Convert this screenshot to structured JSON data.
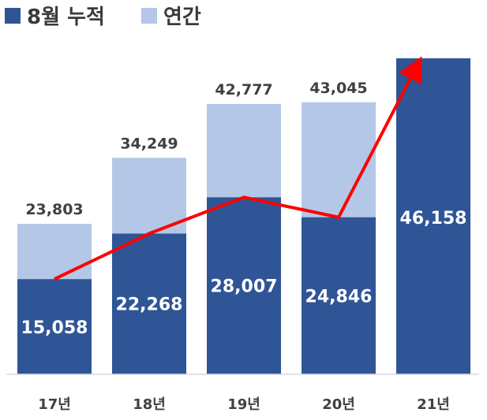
{
  "chart_data": {
    "type": "bar",
    "stacked_overlay": true,
    "categories": [
      "17년",
      "18년",
      "19년",
      "20년",
      "21년"
    ],
    "series": [
      {
        "name": "8월 누적",
        "values": [
          15058,
          22268,
          28007,
          24846,
          46158
        ],
        "labels": [
          "15,058",
          "22,268",
          "28,007",
          "24,846",
          "46,158"
        ],
        "color": "#2f5597"
      },
      {
        "name": "연간",
        "values": [
          23803,
          34249,
          42777,
          43045,
          null
        ],
        "labels": [
          "23,803",
          "34,249",
          "42,777",
          "43,045",
          ""
        ],
        "color": "#b4c7e7"
      }
    ],
    "trend_line": {
      "color": "#ff0000",
      "values": [
        15058,
        22268,
        28007,
        24846,
        46158
      ]
    },
    "ylim": [
      0,
      50000
    ],
    "grid": false,
    "legend": "top-left"
  }
}
